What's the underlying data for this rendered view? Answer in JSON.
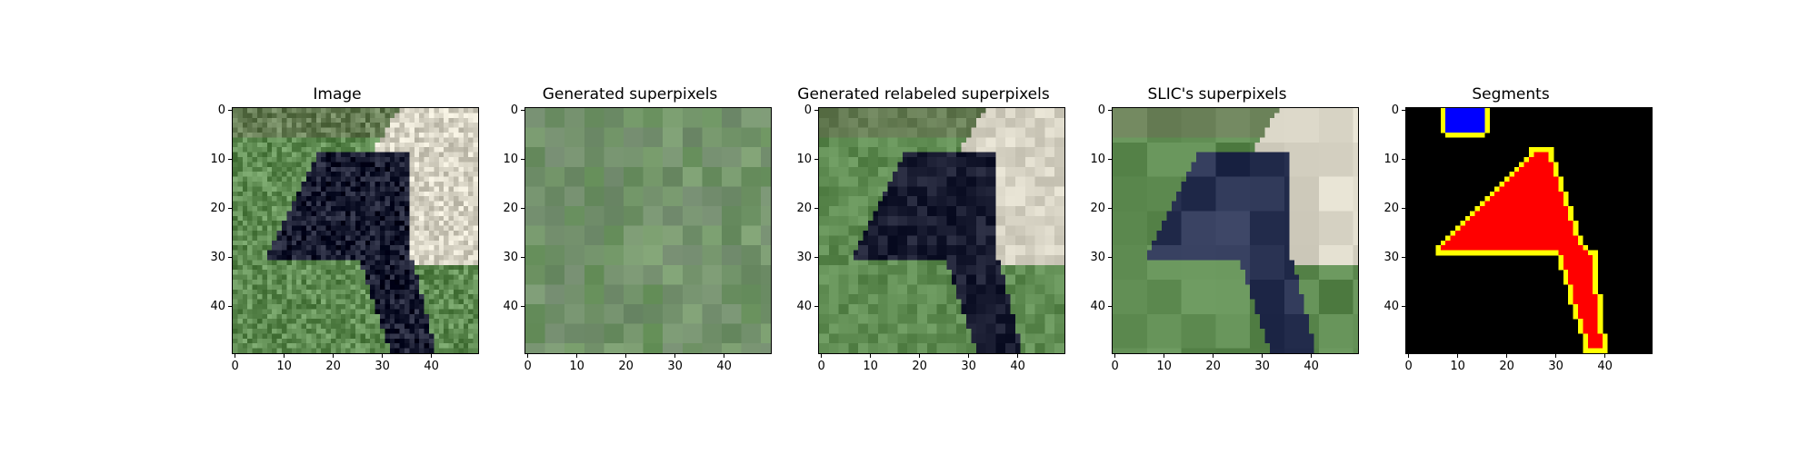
{
  "figure": {
    "panels": [
      {
        "title": "Image",
        "name": "image"
      },
      {
        "title": "Generated superpixels",
        "name": "generated-superpixels"
      },
      {
        "title": "Generated relabeled superpixels",
        "name": "generated-relabeled-superpixels"
      },
      {
        "title": "SLIC's superpixels",
        "name": "slic-superpixels"
      },
      {
        "title": "Segments",
        "name": "segments"
      }
    ],
    "x_ticks": [
      "0",
      "10",
      "20",
      "30",
      "40"
    ],
    "y_ticks": [
      "0",
      "10",
      "20",
      "30",
      "40"
    ],
    "axis_range": [
      0,
      50
    ]
  },
  "colors": {
    "grass": "#5f8c52",
    "grass_light": "#87a97b",
    "dog": "#1a1d32",
    "dog_slic": "#2b3454",
    "wood": "#d7d3c4",
    "segment_background": "#000000",
    "segment_red": "#ff0000",
    "segment_blue": "#0000ff",
    "segment_edge": "#ffff00"
  }
}
